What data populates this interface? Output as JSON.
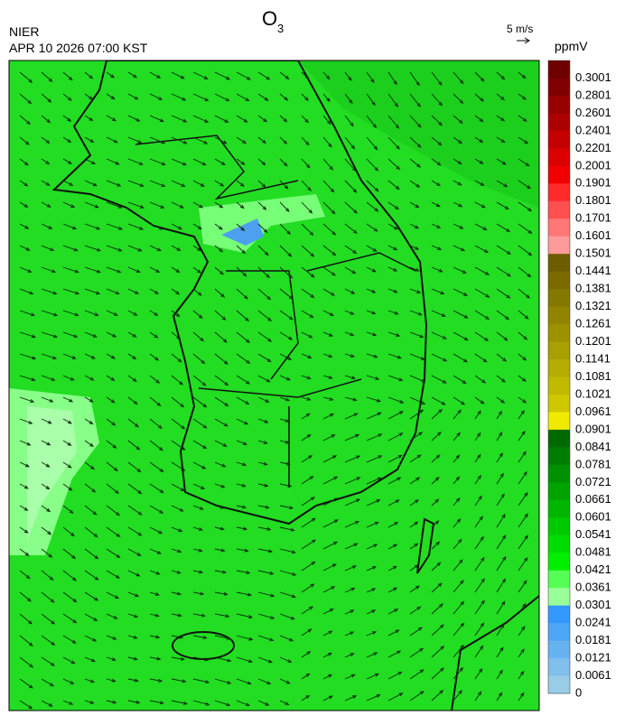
{
  "title": {
    "main": "O",
    "sub": "3"
  },
  "source": "NIER",
  "timestamp": "APR 10 2026 07:00 KST",
  "wind_scale": "5 m/s",
  "colorbar": {
    "unit": "ppmV",
    "levels": [
      0.3001,
      0.2801,
      0.2601,
      0.2401,
      0.2201,
      0.2001,
      0.1901,
      0.1801,
      0.1701,
      0.1601,
      0.1501,
      0.1441,
      0.1381,
      0.1321,
      0.1261,
      0.1201,
      0.1141,
      0.1081,
      0.1021,
      0.0961,
      0.0901,
      0.0841,
      0.0781,
      0.0721,
      0.0661,
      0.0601,
      0.0541,
      0.0481,
      0.0421,
      0.0361,
      0.0301,
      0.0241,
      0.0181,
      0.0121,
      0.0061,
      0
    ],
    "colors": [
      "#6e0000",
      "#7f0000",
      "#960000",
      "#ad0000",
      "#c40000",
      "#dc0000",
      "#f20000",
      "#ff2a2a",
      "#ff5050",
      "#ff7676",
      "#ff9a9a",
      "#6e5c00",
      "#7a6a00",
      "#857800",
      "#918500",
      "#9c9200",
      "#a8a000",
      "#b4ad00",
      "#c0bb00",
      "#cdc800",
      "#f0ea00",
      "#006a00",
      "#007d00",
      "#009000",
      "#00a300",
      "#00b600",
      "#00c900",
      "#00dc00",
      "#00f000",
      "#55ff55",
      "#99ff99",
      "#3399ff",
      "#4da6f5",
      "#66b3f0",
      "#80bfeb",
      "#99cce6"
    ]
  }
}
